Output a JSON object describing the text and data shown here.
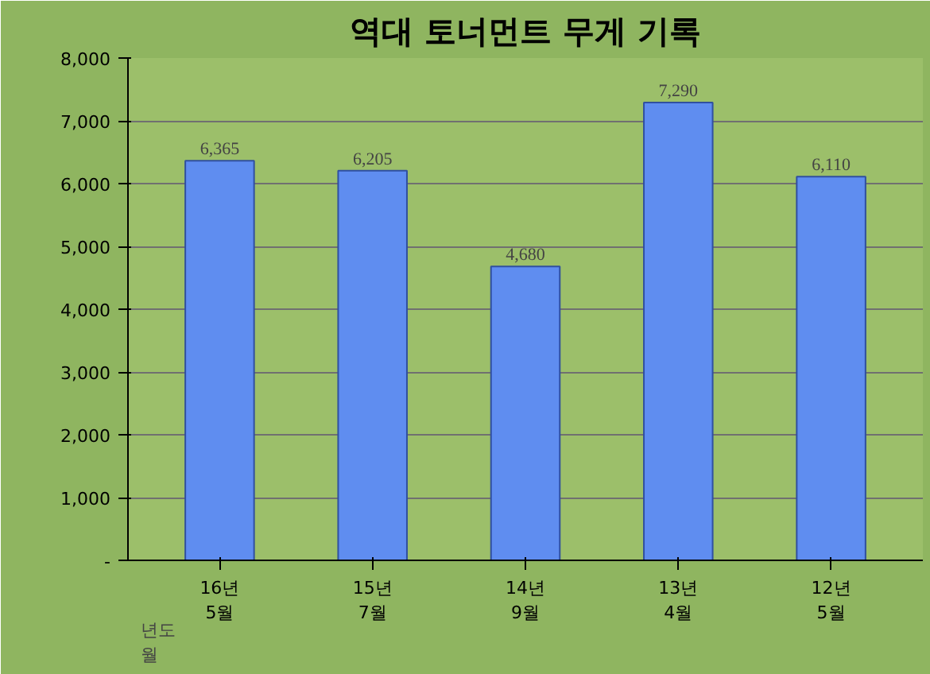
{
  "chart_data": {
    "type": "bar",
    "title": "역대 토너먼트 무게 기록",
    "xlabel": "년도\n월",
    "categories": [
      "16년\n5월",
      "15년\n7월",
      "14년\n9월",
      "13년\n4월",
      "12년\n5월"
    ],
    "values": [
      6365,
      6205,
      4680,
      7290,
      6110
    ],
    "value_labels": [
      "6,365",
      "6,205",
      "4,680",
      "7,290",
      "6,110"
    ],
    "color": "#5f8df0",
    "ylim": [
      0,
      8000
    ],
    "yticks": [
      {
        "value": 0,
        "label": "-"
      },
      {
        "value": 1000,
        "label": "1,000"
      },
      {
        "value": 2000,
        "label": "2,000"
      },
      {
        "value": 3000,
        "label": "3,000"
      },
      {
        "value": 4000,
        "label": "4,000"
      },
      {
        "value": 5000,
        "label": "5,000"
      },
      {
        "value": 6000,
        "label": "6,000"
      },
      {
        "value": 7000,
        "label": "7,000"
      },
      {
        "value": 8000,
        "label": "8,000"
      }
    ],
    "grid": "y"
  }
}
